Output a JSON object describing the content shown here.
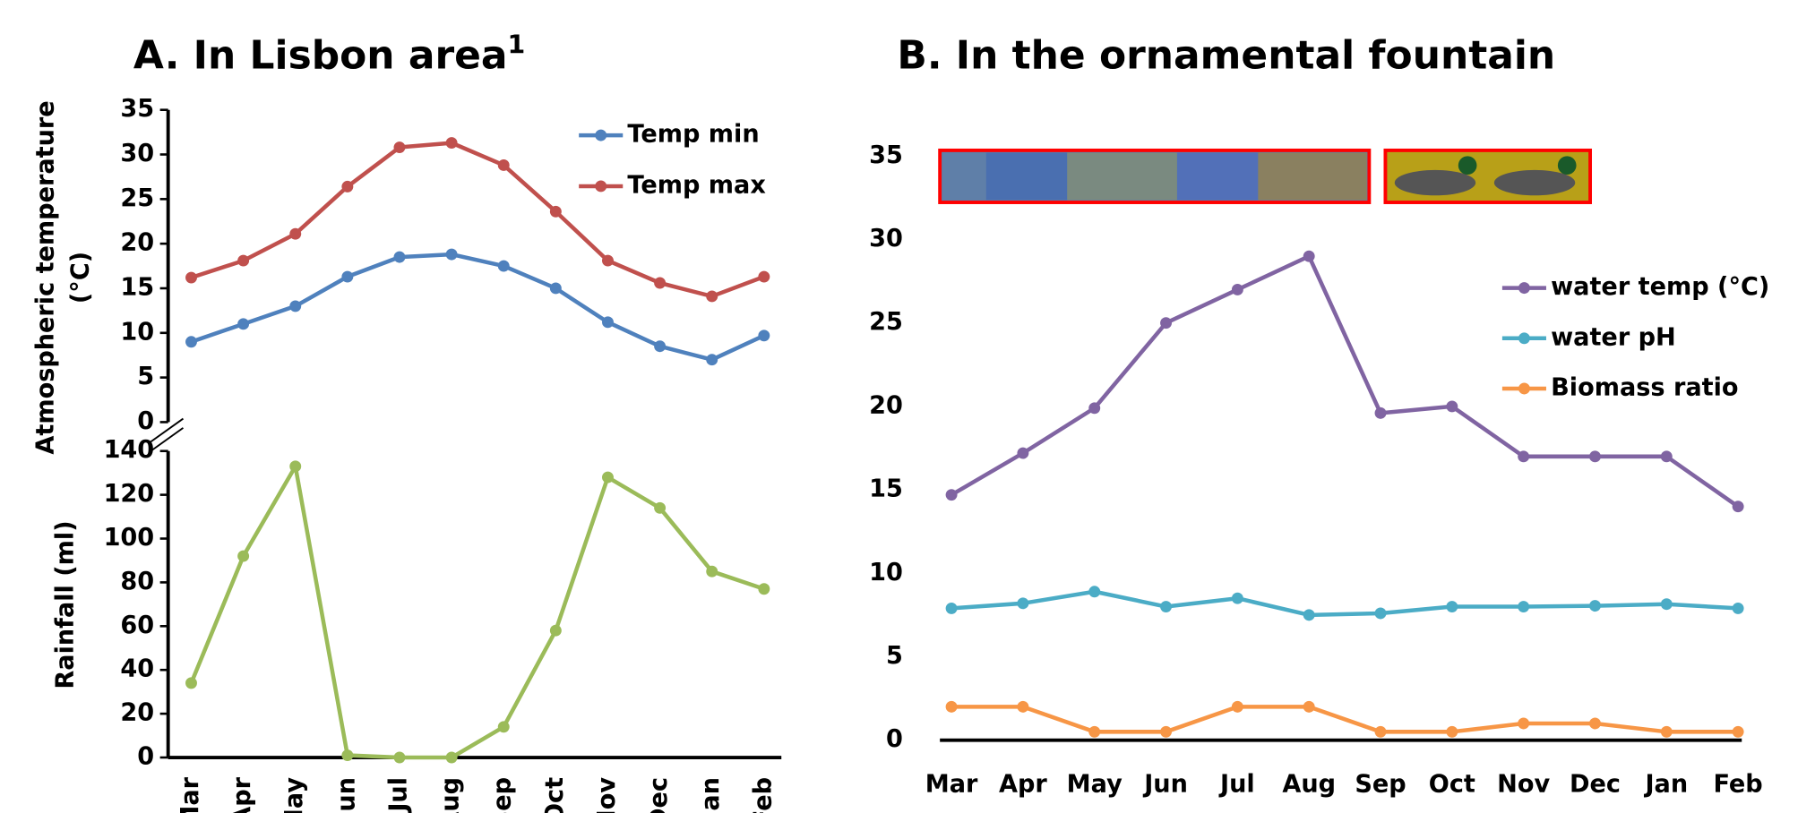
{
  "chart_data": [
    {
      "type": "line",
      "title": "A. In Lisbon area",
      "title_superscript": "1",
      "ylabel": [
        "Atmospheric temperature",
        "(°C)"
      ],
      "categories": [
        null,
        null,
        null,
        null,
        null,
        null,
        null,
        null,
        null,
        null,
        null,
        null
      ],
      "series": [
        {
          "name": "Temp min",
          "color": "#4f81bd",
          "values": [
            9,
            11,
            13,
            16.3,
            18.5,
            18.8,
            17.5,
            15,
            11.2,
            8.5,
            7,
            9.7
          ]
        },
        {
          "name": "Temp max",
          "color": "#c0504d",
          "values": [
            16.2,
            18.1,
            21.1,
            26.4,
            30.8,
            31.3,
            28.8,
            23.6,
            18.1,
            15.6,
            14.1,
            16.3
          ]
        }
      ],
      "ylim": [
        0,
        35
      ],
      "yticks": [
        0,
        5,
        10,
        15,
        20,
        25,
        30,
        35
      ],
      "grid": false,
      "legend": "upper right"
    },
    {
      "type": "line",
      "ylabel": [
        "Rainfall (ml)"
      ],
      "categories": [
        "Mar",
        "Apr",
        "May",
        "Jun",
        "Jul",
        "Aug",
        "Sep",
        "Oct",
        "Nov",
        "Dec",
        "Jan",
        "Feb"
      ],
      "series": [
        {
          "color": "#9bbb59",
          "values": [
            34,
            92,
            133,
            1,
            0,
            0,
            14,
            58,
            128,
            114,
            85,
            77
          ]
        }
      ],
      "ylim": [
        0,
        140
      ],
      "yticks": [
        0,
        20,
        40,
        60,
        80,
        100,
        120,
        140
      ],
      "grid": false
    },
    {
      "type": "line",
      "title": "B. In the ornamental fountain",
      "categories": [
        "Mar",
        "Apr",
        "May",
        "Jun",
        "Jul",
        "Aug",
        "Sep",
        "Oct",
        "Nov",
        "Dec",
        "Jan",
        "Feb"
      ],
      "series": [
        {
          "name": "water temp (°C)",
          "color": "#8064a2",
          "values": [
            14.7,
            17.2,
            19.9,
            25,
            27,
            29,
            19.6,
            20,
            17,
            17,
            17,
            14
          ]
        },
        {
          "name": "water pH",
          "color": "#4bacc6",
          "values": [
            7.9,
            8.2,
            8.9,
            8,
            8.5,
            7.5,
            7.6,
            8,
            8,
            8.05,
            8.15,
            7.9
          ]
        },
        {
          "name": "Biomass ratio",
          "color": "#f79646",
          "values": [
            2,
            2,
            0.5,
            0.5,
            2,
            2,
            0.5,
            0.5,
            1,
            1,
            0.5,
            0.5
          ]
        }
      ],
      "ylim": [
        0,
        35
      ],
      "yticks": [
        0,
        5,
        10,
        15,
        20,
        25,
        30,
        35
      ],
      "grid": false,
      "legend": "right"
    }
  ]
}
